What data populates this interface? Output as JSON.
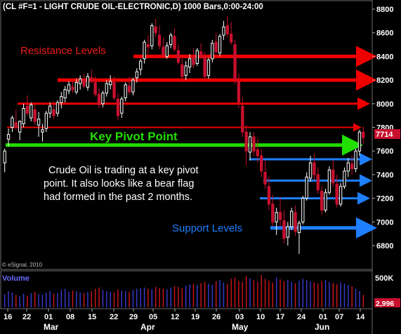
{
  "header": {
    "title": "(CL #F=1 - LIGHT CRUDE OIL-ELECTRONIC,D) 1000 Bars,0:00-24:00"
  },
  "watermark": "© eSignal, 2010",
  "volume_label": "Volume",
  "colors": {
    "background": "#000000",
    "bull_candle": "#ffffff",
    "bear_candle": "#c8102e",
    "frame": "#6a6a6a",
    "resistance": "#ee0000",
    "pivot": "#22dd00",
    "support": "#1e7fff",
    "volume_bar": "#3b3bd8",
    "volume_bar_up": "#d4141a"
  },
  "annotations": {
    "resistance_label": "Resistance Levels",
    "pivot_label": "Key Pivot Point",
    "commentary": [
      "Crude Oil is trading at a key pivot",
      "point.  It also looks like a bear flag",
      "had formed in the past 2 months."
    ],
    "support_label": "Support Levels"
  },
  "chart_data": [
    {
      "type": "candlestick",
      "title": "(CL #F=1 - LIGHT CRUDE OIL-ELECTRONIC,D) 1000 Bars,0:00-24:00",
      "y_ticks": [
        "8800",
        "8600",
        "8400",
        "8200",
        "8000",
        "7800",
        "7600",
        "7400",
        "7200",
        "7000",
        "6800"
      ],
      "ylim": [
        6650,
        8830
      ],
      "x_day_labels": [
        "16",
        "22",
        "01",
        "08",
        "15",
        "22",
        "29",
        "05",
        "12",
        "19",
        "26",
        "03",
        "10",
        "17",
        "24",
        "01",
        "07",
        "14"
      ],
      "x_month_labels": [
        "Mar",
        "Apr",
        "May",
        "Jun"
      ],
      "last_price_label": "7714",
      "last_price": 7714,
      "levels": {
        "resistance": [
          8400,
          8200,
          8000,
          7800
        ],
        "pivot": 7650,
        "support": [
          7530,
          7350,
          7200,
          6950
        ]
      },
      "candles": [
        [
          7500,
          7620,
          7420,
          7600
        ],
        [
          7700,
          7790,
          7640,
          7740
        ],
        [
          7800,
          7900,
          7760,
          7880
        ],
        [
          7840,
          7950,
          7780,
          7800
        ],
        [
          7760,
          7860,
          7690,
          7850
        ],
        [
          7830,
          8000,
          7800,
          7960
        ],
        [
          7980,
          8070,
          7900,
          7920
        ],
        [
          7880,
          8010,
          7850,
          7990
        ],
        [
          7950,
          7990,
          7820,
          7850
        ],
        [
          7820,
          7930,
          7720,
          7870
        ],
        [
          7760,
          7830,
          7680,
          7780
        ],
        [
          7790,
          7940,
          7760,
          7920
        ],
        [
          7920,
          8010,
          7880,
          7980
        ],
        [
          7950,
          8020,
          7870,
          7900
        ],
        [
          7920,
          8030,
          7890,
          8010
        ],
        [
          8010,
          8100,
          7960,
          8060
        ],
        [
          8050,
          8150,
          8010,
          8120
        ],
        [
          8110,
          8190,
          8080,
          8160
        ],
        [
          8140,
          8200,
          8090,
          8120
        ],
        [
          8100,
          8210,
          8080,
          8180
        ],
        [
          8170,
          8240,
          8120,
          8210
        ],
        [
          8200,
          8250,
          8130,
          8150
        ],
        [
          8140,
          8260,
          8110,
          8230
        ],
        [
          8220,
          8290,
          8170,
          8190
        ],
        [
          8180,
          8230,
          8060,
          8080
        ],
        [
          8080,
          8130,
          7960,
          7990
        ],
        [
          8000,
          8110,
          7970,
          8090
        ],
        [
          8090,
          8200,
          8060,
          8170
        ],
        [
          8160,
          8240,
          8120,
          8190
        ],
        [
          8180,
          8230,
          8030,
          8050
        ],
        [
          8040,
          8090,
          7860,
          7900
        ],
        [
          7920,
          8060,
          7880,
          8040
        ],
        [
          8050,
          8180,
          8020,
          8160
        ],
        [
          8150,
          8230,
          8080,
          8100
        ],
        [
          8100,
          8220,
          8070,
          8200
        ],
        [
          8220,
          8300,
          8180,
          8270
        ],
        [
          8290,
          8380,
          8240,
          8360
        ],
        [
          8380,
          8540,
          8340,
          8520
        ],
        [
          8500,
          8580,
          8420,
          8480
        ],
        [
          8490,
          8680,
          8460,
          8660
        ],
        [
          8650,
          8720,
          8560,
          8600
        ],
        [
          8580,
          8660,
          8460,
          8490
        ],
        [
          8480,
          8560,
          8390,
          8410
        ],
        [
          8400,
          8520,
          8380,
          8490
        ],
        [
          8500,
          8600,
          8470,
          8580
        ],
        [
          8570,
          8640,
          8440,
          8460
        ],
        [
          8450,
          8500,
          8330,
          8350
        ],
        [
          8330,
          8380,
          8180,
          8230
        ],
        [
          8240,
          8360,
          8200,
          8320
        ],
        [
          8310,
          8420,
          8260,
          8380
        ],
        [
          8390,
          8470,
          8300,
          8330
        ],
        [
          8340,
          8470,
          8320,
          8450
        ],
        [
          8440,
          8510,
          8380,
          8400
        ],
        [
          8390,
          8440,
          8200,
          8230
        ],
        [
          8240,
          8390,
          8210,
          8370
        ],
        [
          8380,
          8540,
          8350,
          8510
        ],
        [
          8520,
          8600,
          8420,
          8440
        ],
        [
          8430,
          8590,
          8400,
          8570
        ],
        [
          8580,
          8700,
          8540,
          8650
        ],
        [
          8660,
          8740,
          8560,
          8590
        ],
        [
          8590,
          8690,
          8500,
          8520
        ],
        [
          8500,
          8540,
          8160,
          8200
        ],
        [
          8190,
          8260,
          7960,
          8010
        ],
        [
          7980,
          8060,
          7720,
          7760
        ],
        [
          7760,
          7820,
          7480,
          7600
        ],
        [
          7590,
          7760,
          7520,
          7720
        ],
        [
          7720,
          7760,
          7560,
          7600
        ],
        [
          7610,
          7700,
          7500,
          7560
        ],
        [
          7560,
          7620,
          7380,
          7430
        ],
        [
          7420,
          7520,
          7280,
          7320
        ],
        [
          7300,
          7380,
          7100,
          7150
        ],
        [
          7150,
          7230,
          6960,
          7000
        ],
        [
          7000,
          7120,
          6890,
          7080
        ],
        [
          7080,
          7210,
          6960,
          7020
        ],
        [
          7010,
          7100,
          6820,
          6860
        ],
        [
          6870,
          7000,
          6800,
          6960
        ],
        [
          6960,
          7120,
          6930,
          7090
        ],
        [
          7080,
          7140,
          6880,
          6920
        ],
        [
          6910,
          7010,
          6730,
          6990
        ],
        [
          7000,
          7220,
          6980,
          7200
        ],
        [
          7200,
          7420,
          7180,
          7380
        ],
        [
          7370,
          7560,
          7340,
          7500
        ],
        [
          7500,
          7580,
          7360,
          7400
        ],
        [
          7400,
          7460,
          7240,
          7270
        ],
        [
          7260,
          7300,
          7060,
          7100
        ],
        [
          7100,
          7280,
          7080,
          7250
        ],
        [
          7250,
          7470,
          7230,
          7440
        ],
        [
          7440,
          7520,
          7300,
          7330
        ],
        [
          7320,
          7400,
          7120,
          7150
        ],
        [
          7150,
          7330,
          7130,
          7300
        ],
        [
          7300,
          7460,
          7280,
          7430
        ],
        [
          7430,
          7540,
          7380,
          7500
        ],
        [
          7490,
          7560,
          7400,
          7450
        ],
        [
          7450,
          7620,
          7420,
          7600
        ],
        [
          7600,
          7780,
          7560,
          7760
        ],
        [
          7760,
          7810,
          7660,
          7714
        ]
      ]
    },
    {
      "type": "bar",
      "title": "Volume",
      "y_ticks": [
        "500K"
      ],
      "last_value_label": "2,996",
      "values": [
        210,
        260,
        240,
        200,
        180,
        220,
        190,
        230,
        250,
        210,
        200,
        240,
        260,
        220,
        230,
        280,
        300,
        250,
        270,
        260,
        240,
        230,
        250,
        260,
        300,
        320,
        280,
        260,
        250,
        240,
        290,
        270,
        260,
        250,
        280,
        300,
        310,
        320,
        300,
        290,
        330,
        310,
        300,
        290,
        320,
        340,
        330,
        310,
        350,
        370,
        380,
        360,
        390,
        410,
        380,
        360,
        420,
        440,
        400,
        380,
        460,
        480,
        430,
        410,
        500,
        470,
        440,
        410,
        520,
        460,
        430,
        400,
        480,
        450,
        420,
        440,
        410,
        390,
        430,
        460,
        440,
        420,
        400,
        380,
        420,
        440,
        410,
        390,
        370,
        400,
        380,
        360,
        340,
        300,
        260,
        200
      ]
    }
  ]
}
